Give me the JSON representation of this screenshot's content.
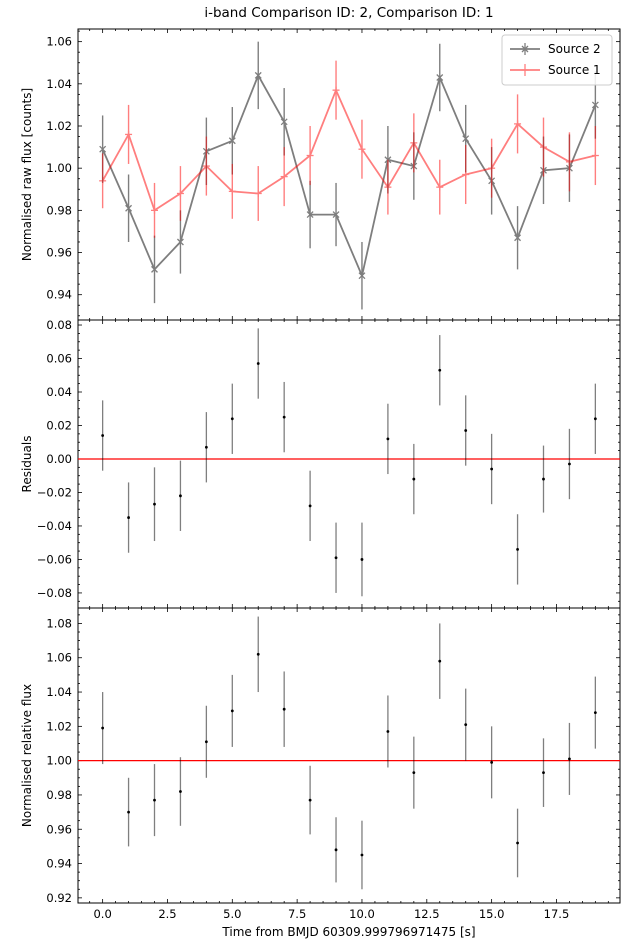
{
  "figure": {
    "title": "i-band Comparison ID: 2, Comparison ID: 1",
    "xlabel": "Time from BMJD 60309.999796971475 [s]"
  },
  "chart_data": [
    {
      "type": "line",
      "ylabel": "Normalised raw flux [counts]",
      "xlim": [
        -0.95,
        19.95
      ],
      "ylim": [
        0.928,
        1.066
      ],
      "xticks": [
        0.0,
        2.5,
        5.0,
        7.5,
        10.0,
        12.5,
        15.0,
        17.5
      ],
      "yticks": [
        0.94,
        0.96,
        0.98,
        1.0,
        1.02,
        1.04,
        1.06
      ],
      "ytick_labels": [
        "0.94",
        "0.96",
        "0.98",
        "1.00",
        "1.02",
        "1.04",
        "1.06"
      ],
      "legend": "top-right",
      "x": [
        0,
        1,
        2,
        3,
        4,
        5,
        6,
        7,
        8,
        9,
        10,
        11,
        12,
        13,
        14,
        15,
        16,
        17,
        18,
        19
      ],
      "series": [
        {
          "name": "Source 2",
          "color": "#000000",
          "marker": "x",
          "values": [
            1.009,
            0.981,
            0.952,
            0.965,
            1.008,
            1.013,
            1.044,
            1.022,
            0.978,
            0.978,
            0.949,
            1.004,
            1.001,
            1.043,
            1.014,
            0.994,
            0.967,
            0.999,
            1.0,
            1.03
          ],
          "errors": [
            0.016,
            0.016,
            0.016,
            0.015,
            0.016,
            0.016,
            0.016,
            0.016,
            0.016,
            0.015,
            0.016,
            0.016,
            0.016,
            0.016,
            0.016,
            0.016,
            0.015,
            0.016,
            0.016,
            0.016
          ]
        },
        {
          "name": "Source 1",
          "color": "#ff0000",
          "marker": "+",
          "values": [
            0.994,
            1.016,
            0.98,
            0.988,
            1.001,
            0.989,
            0.988,
            0.996,
            1.006,
            1.037,
            1.009,
            0.991,
            1.012,
            0.991,
            0.997,
            1.0,
            1.021,
            1.01,
            1.003,
            1.006
          ],
          "errors": [
            0.013,
            0.014,
            0.013,
            0.013,
            0.014,
            0.013,
            0.013,
            0.014,
            0.014,
            0.014,
            0.014,
            0.013,
            0.014,
            0.013,
            0.014,
            0.014,
            0.014,
            0.014,
            0.014,
            0.014
          ]
        }
      ]
    },
    {
      "type": "scatter",
      "ylabel": "Residuals",
      "xlim": [
        -0.95,
        19.95
      ],
      "ylim": [
        -0.089,
        0.083
      ],
      "yticks": [
        -0.08,
        -0.06,
        -0.04,
        -0.02,
        0.0,
        0.02,
        0.04,
        0.06,
        0.08
      ],
      "ytick_labels": [
        "−0.08",
        "−0.06",
        "−0.04",
        "−0.02",
        "0.00",
        "0.02",
        "0.04",
        "0.06",
        "0.08"
      ],
      "reference_line": 0.0,
      "reference_color": "#ff0000",
      "x": [
        0,
        1,
        2,
        3,
        4,
        5,
        6,
        7,
        8,
        9,
        10,
        11,
        12,
        13,
        14,
        15,
        16,
        17,
        18,
        19
      ],
      "values": [
        0.014,
        -0.035,
        -0.027,
        -0.022,
        0.007,
        0.024,
        0.057,
        0.025,
        -0.028,
        -0.059,
        -0.06,
        0.012,
        -0.012,
        0.053,
        0.017,
        -0.006,
        -0.054,
        -0.012,
        -0.003,
        0.024
      ],
      "errors": [
        0.021,
        0.021,
        0.022,
        0.021,
        0.021,
        0.021,
        0.021,
        0.021,
        0.021,
        0.021,
        0.022,
        0.021,
        0.021,
        0.021,
        0.021,
        0.021,
        0.021,
        0.02,
        0.021,
        0.021
      ]
    },
    {
      "type": "scatter",
      "ylabel": "Normalised relative flux",
      "xlim": [
        -0.95,
        19.95
      ],
      "ylim": [
        0.917,
        1.089
      ],
      "xticks": [
        0.0,
        2.5,
        5.0,
        7.5,
        10.0,
        12.5,
        15.0,
        17.5
      ],
      "xtick_labels": [
        "0.0",
        "2.5",
        "5.0",
        "7.5",
        "10.0",
        "12.5",
        "15.0",
        "17.5"
      ],
      "yticks": [
        0.92,
        0.94,
        0.96,
        0.98,
        1.0,
        1.02,
        1.04,
        1.06,
        1.08
      ],
      "ytick_labels": [
        "0.92",
        "0.94",
        "0.96",
        "0.98",
        "1.00",
        "1.02",
        "1.04",
        "1.06",
        "1.08"
      ],
      "reference_line": 1.0,
      "reference_color": "#ff0000",
      "x": [
        0,
        1,
        2,
        3,
        4,
        5,
        6,
        7,
        8,
        9,
        10,
        11,
        12,
        13,
        14,
        15,
        16,
        17,
        18,
        19
      ],
      "values": [
        1.019,
        0.97,
        0.977,
        0.982,
        1.011,
        1.029,
        1.062,
        1.03,
        0.977,
        0.948,
        0.945,
        1.017,
        0.993,
        1.058,
        1.021,
        0.999,
        0.952,
        0.993,
        1.001,
        1.028
      ],
      "errors": [
        0.021,
        0.02,
        0.021,
        0.02,
        0.021,
        0.021,
        0.022,
        0.022,
        0.02,
        0.019,
        0.02,
        0.021,
        0.021,
        0.022,
        0.021,
        0.021,
        0.02,
        0.02,
        0.021,
        0.021
      ]
    }
  ]
}
